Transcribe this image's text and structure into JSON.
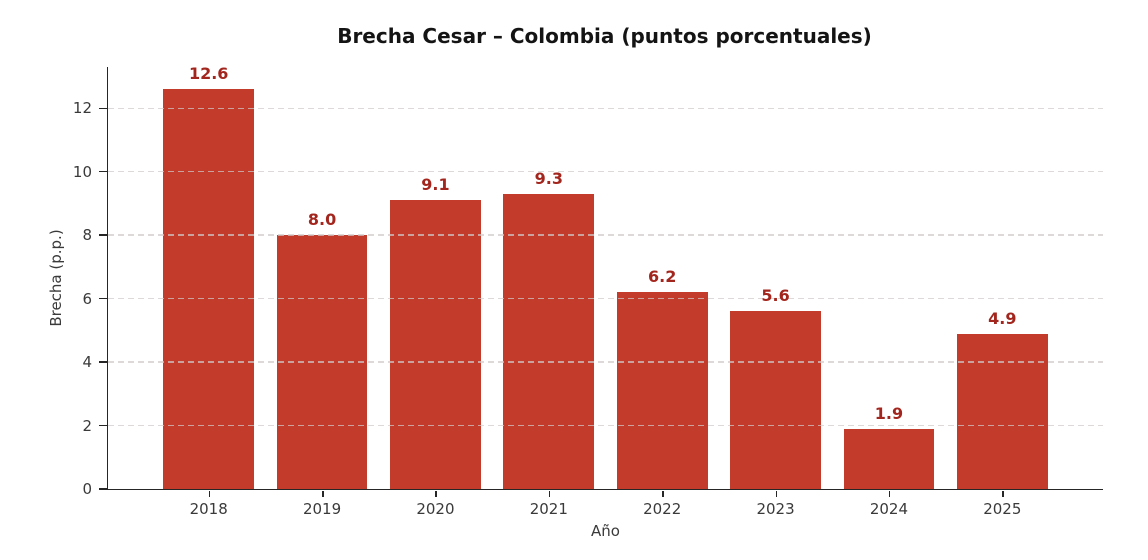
{
  "chart_data": {
    "type": "bar",
    "title": "Brecha Cesar – Colombia (puntos porcentuales)",
    "xlabel": "Año",
    "ylabel": "Brecha (p.p.)",
    "categories": [
      "2018",
      "2019",
      "2020",
      "2021",
      "2022",
      "2023",
      "2024",
      "2025"
    ],
    "values": [
      12.6,
      8.0,
      9.1,
      9.3,
      6.2,
      5.6,
      1.9,
      4.9
    ],
    "value_labels": [
      "12.6",
      "8.0",
      "9.1",
      "9.3",
      "6.2",
      "5.6",
      "1.9",
      "4.9"
    ],
    "yticks": [
      0,
      2,
      4,
      6,
      8,
      10,
      12
    ],
    "ylim": [
      0,
      13.3
    ],
    "grid": "horizontal-dashed",
    "legend": "none",
    "bar_color": "#c23b2b",
    "value_label_color": "#a3261e",
    "axis_color": "#262626",
    "tick_label_color": "#3a3a3a"
  }
}
